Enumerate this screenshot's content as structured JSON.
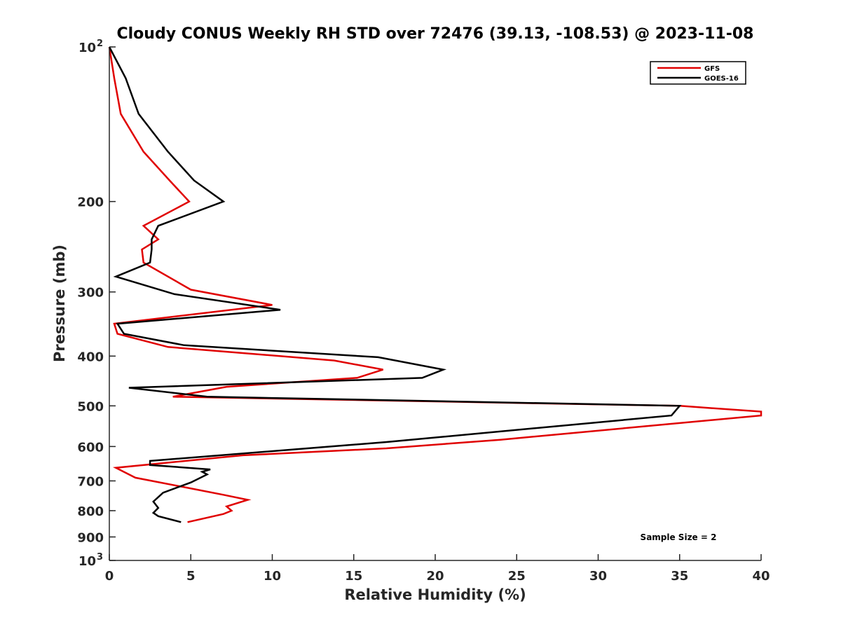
{
  "chart_data": {
    "type": "line",
    "title": "Cloudy CONUS Weekly RH STD over 72476 (39.13, -108.53) @ 2023-11-08",
    "xlabel": "Relative Humidity (%)",
    "ylabel": "Pressure (mb)",
    "xlim": [
      0,
      40
    ],
    "ylim": [
      100,
      1000
    ],
    "y_scale": "log",
    "y_reversed": true,
    "x_ticks": [
      "0",
      "5",
      "10",
      "15",
      "20",
      "25",
      "30",
      "35",
      "40"
    ],
    "y_ticks": [
      {
        "value": 100,
        "label": "10",
        "sup": "2"
      },
      {
        "value": 200,
        "label": "200",
        "sup": ""
      },
      {
        "value": 300,
        "label": "300",
        "sup": ""
      },
      {
        "value": 400,
        "label": "400",
        "sup": ""
      },
      {
        "value": 500,
        "label": "500",
        "sup": ""
      },
      {
        "value": 600,
        "label": "600",
        "sup": ""
      },
      {
        "value": 700,
        "label": "700",
        "sup": ""
      },
      {
        "value": 800,
        "label": "800",
        "sup": ""
      },
      {
        "value": 900,
        "label": "900",
        "sup": ""
      },
      {
        "value": 1000,
        "label": "10",
        "sup": "3"
      }
    ],
    "grid": false,
    "legend_position": "top-right",
    "annotation": "Sample Size = 2",
    "series": [
      {
        "name": "GFS",
        "color": "#e00000",
        "points": [
          [
            0.0,
            100
          ],
          [
            0.3,
            115
          ],
          [
            0.7,
            135
          ],
          [
            2.1,
            160
          ],
          [
            3.7,
            182
          ],
          [
            4.9,
            200
          ],
          [
            2.1,
            223
          ],
          [
            3.0,
            237
          ],
          [
            2.0,
            248
          ],
          [
            2.1,
            263
          ],
          [
            5.0,
            297
          ],
          [
            10.0,
            318
          ],
          [
            0.3,
            346
          ],
          [
            0.5,
            362
          ],
          [
            3.6,
            384
          ],
          [
            13.8,
            408
          ],
          [
            16.8,
            425
          ],
          [
            15.2,
            441
          ],
          [
            7.2,
            459
          ],
          [
            3.9,
            480
          ],
          [
            35.0,
            500
          ],
          [
            36.9,
            505
          ],
          [
            40.0,
            513
          ],
          [
            40.0,
            522
          ],
          [
            24.0,
            582
          ],
          [
            17.0,
            605
          ],
          [
            8.2,
            624
          ],
          [
            0.4,
            660
          ],
          [
            1.6,
            690
          ],
          [
            4.6,
            720
          ],
          [
            7.0,
            745
          ],
          [
            8.5,
            762
          ],
          [
            7.2,
            785
          ],
          [
            7.5,
            800
          ],
          [
            7.0,
            812
          ],
          [
            4.8,
            842
          ]
        ]
      },
      {
        "name": "GOES-16",
        "color": "#000000",
        "points": [
          [
            0.0,
            100
          ],
          [
            1.0,
            115
          ],
          [
            1.8,
            135
          ],
          [
            3.6,
            160
          ],
          [
            5.2,
            182
          ],
          [
            7.0,
            200
          ],
          [
            3.0,
            223
          ],
          [
            2.6,
            237
          ],
          [
            2.6,
            248
          ],
          [
            2.5,
            263
          ],
          [
            0.4,
            280
          ],
          [
            4.0,
            303
          ],
          [
            10.5,
            325
          ],
          [
            0.5,
            346
          ],
          [
            0.9,
            362
          ],
          [
            4.6,
            381
          ],
          [
            16.5,
            402
          ],
          [
            20.5,
            425
          ],
          [
            19.2,
            441
          ],
          [
            1.2,
            461
          ],
          [
            6.0,
            480
          ],
          [
            35.0,
            500
          ],
          [
            34.5,
            522
          ],
          [
            17.0,
            588
          ],
          [
            2.5,
            640
          ],
          [
            2.5,
            652
          ],
          [
            6.2,
            665
          ],
          [
            5.7,
            672
          ],
          [
            6.0,
            680
          ],
          [
            5.0,
            705
          ],
          [
            3.3,
            738
          ],
          [
            2.7,
            768
          ],
          [
            3.0,
            790
          ],
          [
            2.7,
            808
          ],
          [
            3.0,
            820
          ],
          [
            4.4,
            842
          ]
        ]
      }
    ]
  }
}
